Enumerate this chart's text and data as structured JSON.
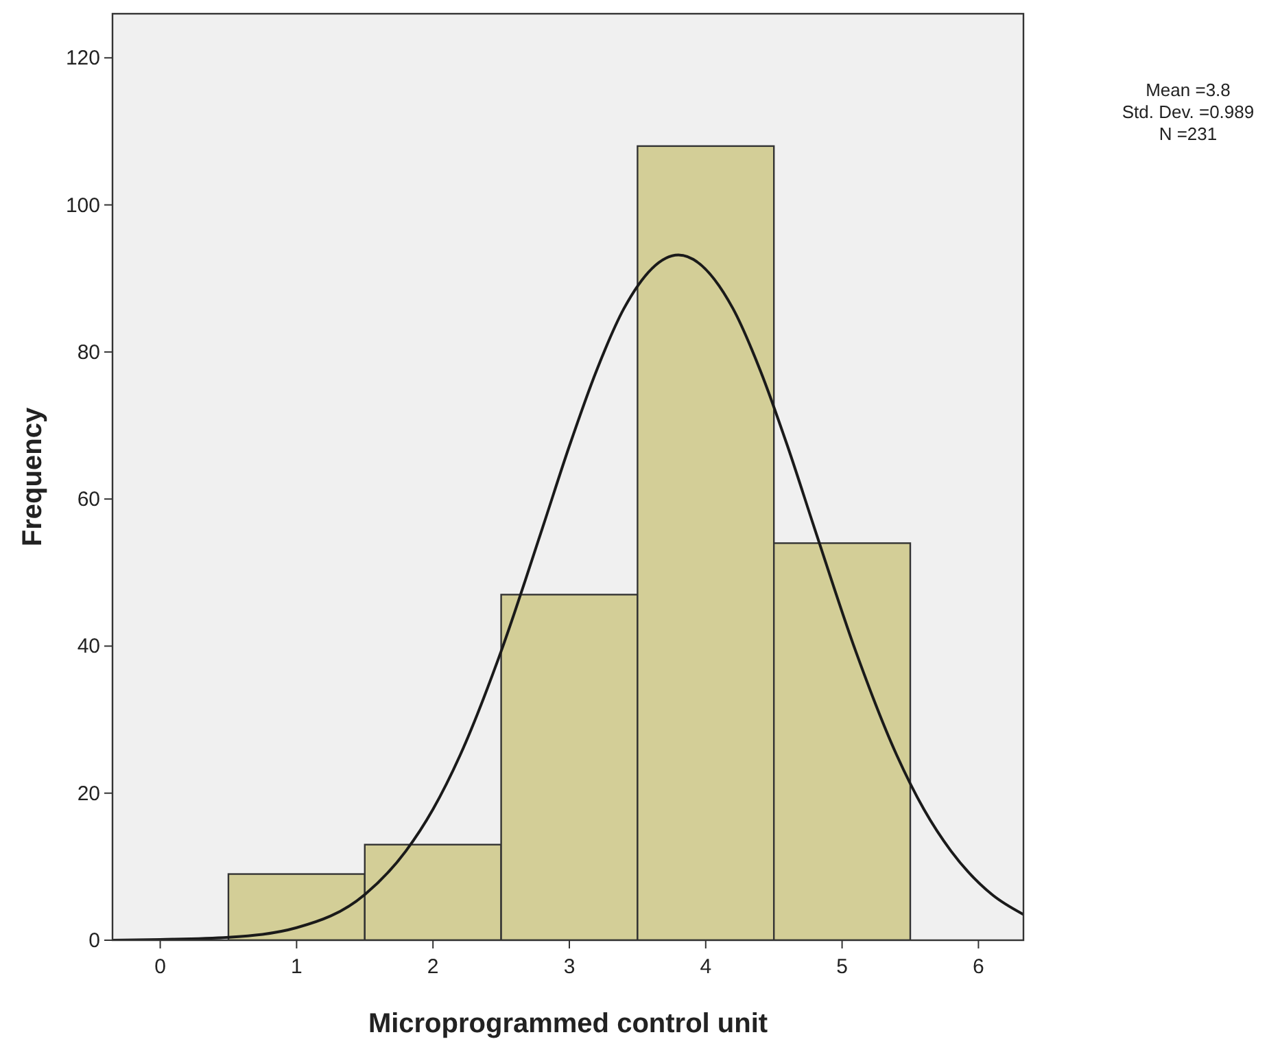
{
  "chart_data": {
    "type": "histogram",
    "xlabel": "Microprogrammed control unit",
    "ylabel": "Frequency",
    "bins": [
      0.5,
      1.5,
      2.5,
      3.5,
      4.5,
      5.5
    ],
    "values": [
      9,
      13,
      47,
      108,
      54
    ],
    "color": "#d3ce97",
    "series": [
      {
        "type": "line",
        "color": "#1a1a1a",
        "x": [
          -0.35,
          0,
          0.5,
          1,
          1.5,
          1.8,
          2,
          2.2,
          2.5,
          2.8,
          3,
          3.2,
          3.4,
          3.8,
          4.2,
          4.4,
          4.6,
          4.8,
          5.1,
          5.4,
          5.6,
          5.8,
          6.1,
          6.33
        ],
        "values": [
          0,
          0.1,
          0.4,
          1.7,
          6.2,
          12.1,
          17.8,
          25.2,
          39.3,
          55.9,
          67.2,
          77.5,
          85.9,
          93.2,
          85.9,
          77.5,
          67.2,
          55.9,
          39.3,
          25.2,
          17.8,
          12.1,
          6.2,
          3.5
        ]
      }
    ],
    "xlim": [
      -0.35,
      6.33
    ],
    "xticks": [
      0,
      1,
      2,
      3,
      4,
      5,
      6
    ],
    "ylim": [
      0,
      126
    ],
    "yticks": [
      0,
      20,
      40,
      60,
      80,
      100,
      120
    ],
    "annotations": [
      "Mean =3.8",
      "Std. Dev. =0.989",
      "N =231"
    ]
  }
}
